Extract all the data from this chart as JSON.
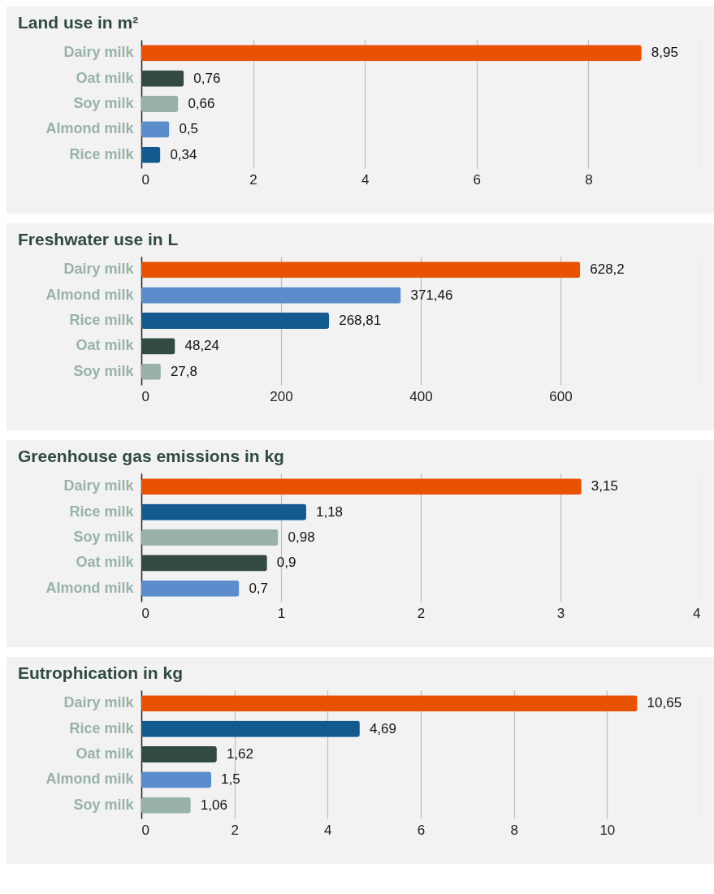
{
  "chart_data": [
    {
      "type": "bar",
      "orientation": "horizontal",
      "title": "Land use in m²",
      "categories": [
        "Dairy milk",
        "Oat milk",
        "Soy milk",
        "Almond milk",
        "Rice milk"
      ],
      "values": [
        8.95,
        0.76,
        0.66,
        0.5,
        0.34
      ],
      "colors": [
        "#e85200",
        "#334a44",
        "#98b2a8",
        "#5b8ccc",
        "#135a8e"
      ],
      "value_labels": [
        "8,95",
        "0,76",
        "0,66",
        "0,5",
        "0,34"
      ],
      "xlim": [
        0,
        10
      ],
      "xticks": [
        0,
        2,
        4,
        6,
        8,
        {
          "value": 10,
          "label": null
        }
      ],
      "grid": "x"
    },
    {
      "type": "bar",
      "orientation": "horizontal",
      "title": "Freshwater use in L",
      "categories": [
        "Dairy milk",
        "Almond milk",
        "Rice milk",
        "Oat milk",
        "Soy milk"
      ],
      "values": [
        628.2,
        371.46,
        268.81,
        48.24,
        27.8
      ],
      "colors": [
        "#e85200",
        "#5b8ccc",
        "#135a8e",
        "#334a44",
        "#98b2a8"
      ],
      "value_labels": [
        "628,2",
        "371,46",
        "268,81",
        "48,24",
        "27,8"
      ],
      "xlim": [
        0,
        800
      ],
      "xticks": [
        0,
        200,
        400,
        600,
        {
          "value": 800,
          "label": null
        }
      ],
      "grid": "x"
    },
    {
      "type": "bar",
      "orientation": "horizontal",
      "title": "Greenhouse gas emissions in kg",
      "categories": [
        "Dairy milk",
        "Rice milk",
        "Soy milk",
        "Oat milk",
        "Almond milk"
      ],
      "values": [
        3.15,
        1.18,
        0.98,
        0.9,
        0.7
      ],
      "colors": [
        "#e85200",
        "#135a8e",
        "#98b2a8",
        "#334a44",
        "#5b8ccc"
      ],
      "value_labels": [
        "3,15",
        "1,18",
        "0,98",
        "0,9",
        "0,7"
      ],
      "xlim": [
        0,
        4
      ],
      "xticks": [
        0,
        1,
        2,
        3,
        4
      ],
      "grid": "x"
    },
    {
      "type": "bar",
      "orientation": "horizontal",
      "title": "Eutrophication in kg",
      "categories": [
        "Dairy milk",
        "Rice milk",
        "Oat milk",
        "Almond milk",
        "Soy milk"
      ],
      "values": [
        10.65,
        4.69,
        1.62,
        1.5,
        1.06
      ],
      "colors": [
        "#e85200",
        "#135a8e",
        "#334a44",
        "#5b8ccc",
        "#98b2a8"
      ],
      "value_labels": [
        "10,65",
        "4,69",
        "1,62",
        "1,5",
        "1,06"
      ],
      "xlim": [
        0,
        12
      ],
      "xticks": [
        0,
        2,
        4,
        6,
        8,
        10,
        {
          "value": 12,
          "label": null
        }
      ],
      "grid": "x"
    }
  ]
}
